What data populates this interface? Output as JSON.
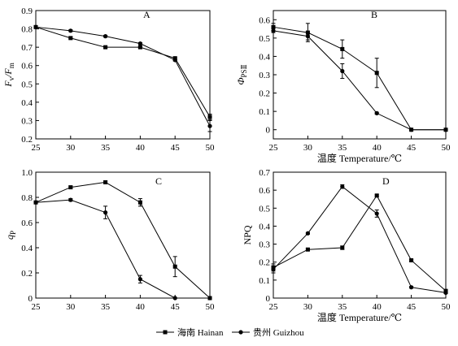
{
  "colors": {
    "axis": "#000000",
    "series": "#000000",
    "background": "#ffffff"
  },
  "legend": {
    "position": "bottom-center",
    "items": [
      {
        "label": "海南 Hainan",
        "marker": "square"
      },
      {
        "label": "贵州 Guizhou",
        "marker": "circle"
      }
    ]
  },
  "chart_data": [
    {
      "id": "A",
      "panel_label": "A",
      "type": "line",
      "xlabel": "",
      "ylabel_main": "F",
      "ylabel_main_sub": "v",
      "ylabel_sep": "/F",
      "ylabel_sub": "m",
      "xlim": [
        25,
        50
      ],
      "ylim": [
        0.2,
        0.9
      ],
      "xticks": [
        25,
        30,
        35,
        40,
        45,
        50
      ],
      "yticks": [
        0.2,
        0.3,
        0.4,
        0.5,
        0.6,
        0.7,
        0.8,
        0.9
      ],
      "ytick_labels": [
        "0.2",
        "0.3",
        "0.4",
        "0.5",
        "0.6",
        "0.7",
        "0.8",
        "0.9"
      ],
      "x": [
        25,
        30,
        35,
        40,
        45,
        50
      ],
      "series": [
        {
          "name": "海南 Hainan",
          "marker": "square",
          "values": [
            0.81,
            0.75,
            0.7,
            0.7,
            0.64,
            0.32
          ],
          "errors": [
            0.005,
            0.005,
            0.005,
            0.005,
            0.005,
            0.015
          ]
        },
        {
          "name": "贵州 Guizhou",
          "marker": "circle",
          "values": [
            0.81,
            0.79,
            0.76,
            0.72,
            0.63,
            0.27
          ],
          "errors": [
            0.005,
            0.005,
            0.005,
            0.005,
            0.005,
            0.03
          ]
        }
      ]
    },
    {
      "id": "B",
      "panel_label": "B",
      "type": "line",
      "xlabel": "温度 Temperature/℃",
      "ylabel_main": "Φ",
      "ylabel_main_sub": "",
      "ylabel_sep": "",
      "ylabel_sub": "PSⅡ",
      "xlim": [
        25,
        50
      ],
      "ylim": [
        -0.05,
        0.65
      ],
      "xticks": [
        25,
        30,
        35,
        40,
        45,
        50
      ],
      "yticks": [
        0,
        0.1,
        0.2,
        0.3,
        0.4,
        0.5,
        0.6
      ],
      "ytick_labels": [
        "0",
        "0.1",
        "0.2",
        "0.3",
        "0.4",
        "0.5",
        "0.6"
      ],
      "x": [
        25,
        30,
        35,
        40,
        45,
        50
      ],
      "series": [
        {
          "name": "海南 Hainan",
          "marker": "square",
          "values": [
            0.56,
            0.53,
            0.44,
            0.31,
            0.0,
            0.0
          ],
          "errors": [
            0.02,
            0.05,
            0.05,
            0.08,
            0.0,
            0.0
          ]
        },
        {
          "name": "贵州 Guizhou",
          "marker": "circle",
          "values": [
            0.54,
            0.51,
            0.32,
            0.09,
            0.0,
            0.0
          ],
          "errors": [
            0.01,
            0.02,
            0.04,
            0.005,
            0.0,
            0.0
          ]
        }
      ]
    },
    {
      "id": "C",
      "panel_label": "C",
      "type": "line",
      "xlabel": "",
      "ylabel_main": "q",
      "ylabel_main_sub": "",
      "ylabel_sep": "",
      "ylabel_sub": "P",
      "xlim": [
        25,
        50
      ],
      "ylim": [
        0,
        1.0
      ],
      "xticks": [
        25,
        30,
        35,
        40,
        45,
        50
      ],
      "yticks": [
        0,
        0.2,
        0.4,
        0.6,
        0.8,
        1.0
      ],
      "ytick_labels": [
        "0",
        "0.2",
        "0.4",
        "0.6",
        "0.8",
        "1.0"
      ],
      "x": [
        25,
        30,
        35,
        40,
        45,
        50
      ],
      "series": [
        {
          "name": "海南 Hainan",
          "marker": "square",
          "values": [
            0.76,
            0.88,
            0.92,
            0.76,
            0.25,
            0.0
          ],
          "errors": [
            0.01,
            0.01,
            0.01,
            0.03,
            0.08,
            0.0
          ]
        },
        {
          "name": "贵州 Guizhou",
          "marker": "circle",
          "values": [
            0.76,
            0.78,
            0.68,
            0.15,
            0.0,
            0.0
          ],
          "errors": [
            0.01,
            0.01,
            0.05,
            0.03,
            0.0,
            0.0
          ]
        }
      ]
    },
    {
      "id": "D",
      "panel_label": "D",
      "type": "line",
      "xlabel": "温度 Temperature/℃",
      "ylabel_main": "NPQ",
      "ylabel_main_sub": "",
      "ylabel_sep": "",
      "ylabel_sub": "",
      "xlim": [
        25,
        50
      ],
      "ylim": [
        0,
        0.7
      ],
      "xticks": [
        25,
        30,
        35,
        40,
        45,
        50
      ],
      "yticks": [
        0,
        0.1,
        0.2,
        0.3,
        0.4,
        0.5,
        0.6,
        0.7
      ],
      "ytick_labels": [
        "0",
        "0.1",
        "0.2",
        "0.3",
        "0.4",
        "0.5",
        "0.6",
        "0.7"
      ],
      "x": [
        25,
        30,
        35,
        40,
        45,
        50
      ],
      "series": [
        {
          "name": "海南 Hainan",
          "marker": "square",
          "values": [
            0.17,
            0.27,
            0.28,
            0.57,
            0.21,
            0.04
          ],
          "errors": [
            0.02,
            0.005,
            0.01,
            0.005,
            0.005,
            0.005
          ]
        },
        {
          "name": "贵州 Guizhou",
          "marker": "circle",
          "values": [
            0.16,
            0.36,
            0.62,
            0.47,
            0.06,
            0.03
          ],
          "errors": [
            0.02,
            0.005,
            0.01,
            0.02,
            0.005,
            0.005
          ]
        }
      ]
    }
  ]
}
